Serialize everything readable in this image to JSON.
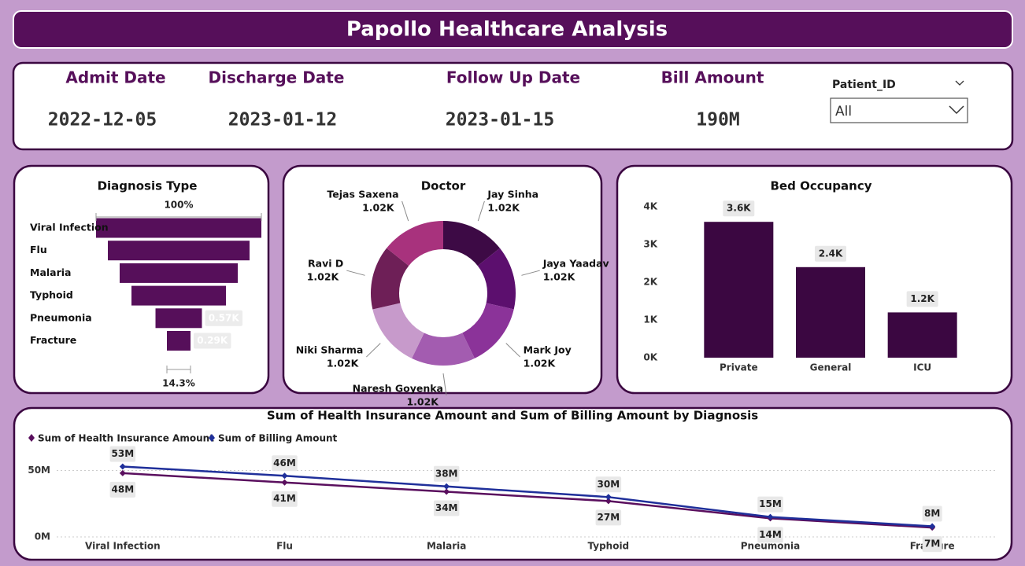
{
  "header": {
    "title": "Papollo Healthcare Analysis"
  },
  "kpis": [
    {
      "label": "Admit Date",
      "value": "2022-12-05"
    },
    {
      "label": "Discharge Date",
      "value": "2023-01-12"
    },
    {
      "label": "Follow Up Date",
      "value": "2023-01-15"
    },
    {
      "label": "Bill Amount",
      "value": "190M"
    }
  ],
  "slicer": {
    "label": "Patient_ID",
    "value": "All"
  },
  "chart_data": [
    {
      "type": "funnel",
      "title": "Diagnosis Type",
      "categories": [
        "Viral Infection",
        "Flu",
        "Malaria",
        "Typhoid",
        "Pneumonia",
        "Fracture"
      ],
      "values": [
        2.03,
        1.74,
        1.45,
        1.16,
        0.57,
        0.29
      ],
      "value_labels": [
        null,
        null,
        null,
        null,
        "0.57K",
        "0.29K"
      ],
      "first_percent": {
        "value": 100,
        "label": "100%"
      },
      "last_percent": {
        "value": 14.3,
        "label": "14.3%"
      },
      "color": "#560f5a"
    },
    {
      "type": "donut",
      "title": "Doctor",
      "categories": [
        "Jay Sinha",
        "Jaya Yaadav",
        "Mark Joy",
        "Naresh Goyenka",
        "Niki Sharma",
        "Ravi D",
        "Tejas Saxena"
      ],
      "values": [
        1.02,
        1.02,
        1.02,
        1.02,
        1.02,
        1.02,
        1.02
      ],
      "value_labels": [
        "1.02K",
        "1.02K",
        "1.02K",
        "1.02K",
        "1.02K",
        "1.02K",
        "1.02K"
      ],
      "colors": [
        "#3d0a45",
        "#5c0f6e",
        "#8b3399",
        "#a35cb0",
        "#c79acb",
        "#6e1f57",
        "#a8327d"
      ]
    },
    {
      "type": "bar",
      "title": "Bed Occupancy",
      "categories": [
        "Private",
        "General",
        "ICU"
      ],
      "values": [
        3.6,
        2.4,
        1.2
      ],
      "value_labels": [
        "3.6K",
        "2.4K",
        "1.2K"
      ],
      "ylim": [
        0,
        4
      ],
      "yticks": [
        {
          "value": 0,
          "label": "0K"
        },
        {
          "value": 1,
          "label": "1K"
        },
        {
          "value": 2,
          "label": "2K"
        },
        {
          "value": 3,
          "label": "3K"
        },
        {
          "value": 4,
          "label": "4K"
        }
      ],
      "color": "#3b0741"
    },
    {
      "type": "line",
      "title": "Sum of Health Insurance Amount and Sum of Billing Amount by Diagnosis",
      "categories": [
        "Viral Infection",
        "Flu",
        "Malaria",
        "Typhoid",
        "Pneumonia",
        "Fracture"
      ],
      "series": [
        {
          "name": "Sum of Health Insurance Amount",
          "color": "#5a0f5e",
          "values": [
            48,
            41,
            34,
            27,
            14,
            7
          ],
          "value_labels": [
            "48M",
            "41M",
            "34M",
            "27M",
            "14M",
            "7M"
          ]
        },
        {
          "name": "Sum of Billing Amount",
          "color": "#1f2f9a",
          "values": [
            53,
            46,
            38,
            30,
            15,
            8
          ],
          "value_labels": [
            "53M",
            "46M",
            "38M",
            "30M",
            "15M",
            "8M"
          ]
        }
      ],
      "ylim": [
        0,
        58
      ],
      "yticks": [
        {
          "value": 0,
          "label": "0M"
        },
        {
          "value": 50,
          "label": "50M"
        }
      ],
      "grid": true
    }
  ]
}
